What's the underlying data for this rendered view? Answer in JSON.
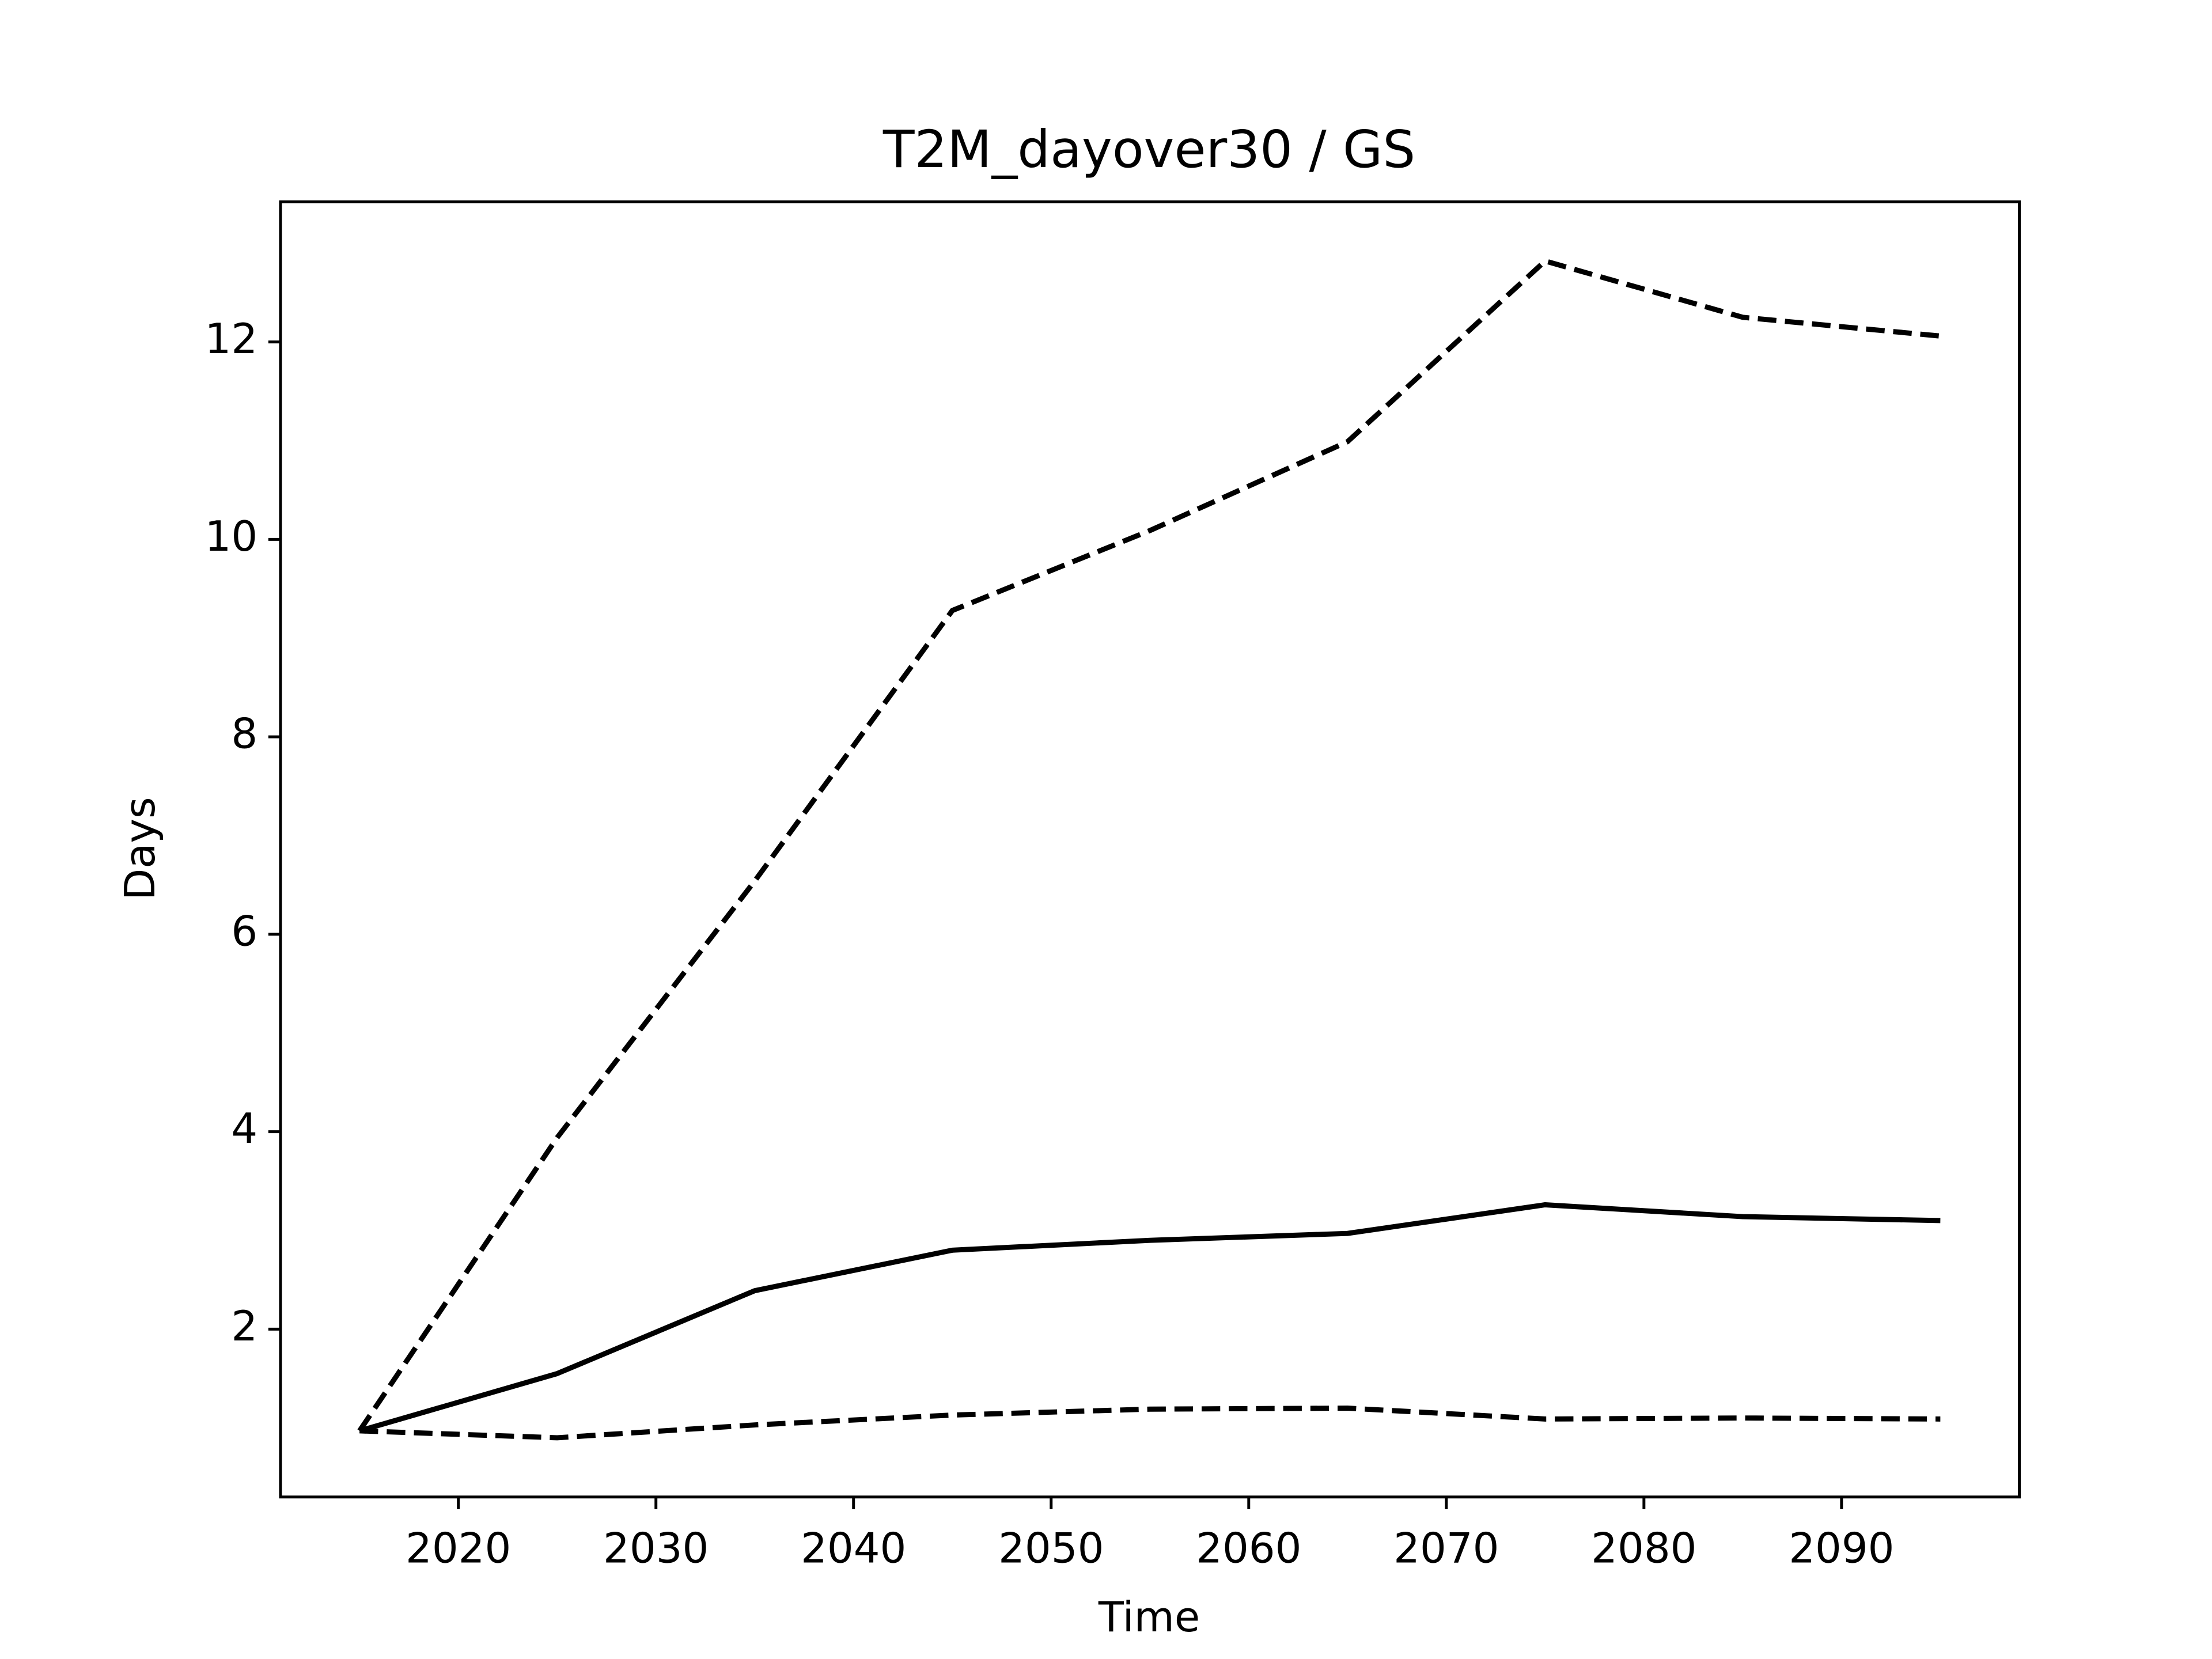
{
  "chart_data": {
    "type": "line",
    "title": "T2M_dayover30 / GS",
    "xlabel": "Time",
    "ylabel": "Days",
    "x": [
      2015,
      2025,
      2035,
      2045,
      2055,
      2065,
      2075,
      2085,
      2095
    ],
    "series": [
      {
        "color": "#000000",
        "dashed": false,
        "values": [
          0.97,
          1.55,
          2.39,
          2.8,
          2.9,
          2.97,
          3.26,
          3.14,
          3.1
        ]
      },
      {
        "color": "#000000",
        "dashed": true,
        "values": [
          0.97,
          3.94,
          6.54,
          9.28,
          10.09,
          10.99,
          12.82,
          12.25,
          12.06
        ]
      },
      {
        "color": "#000000",
        "dashed": true,
        "values": [
          0.97,
          0.9,
          1.03,
          1.13,
          1.19,
          1.2,
          1.09,
          1.1,
          1.09
        ]
      }
    ],
    "xlim": [
      2011,
      2099
    ],
    "ylim": [
      0.3,
      13.42
    ],
    "xticks": [
      2020,
      2030,
      2040,
      2050,
      2060,
      2070,
      2080,
      2090
    ],
    "yticks": [
      2,
      4,
      6,
      8,
      10,
      12
    ],
    "grid": false
  }
}
